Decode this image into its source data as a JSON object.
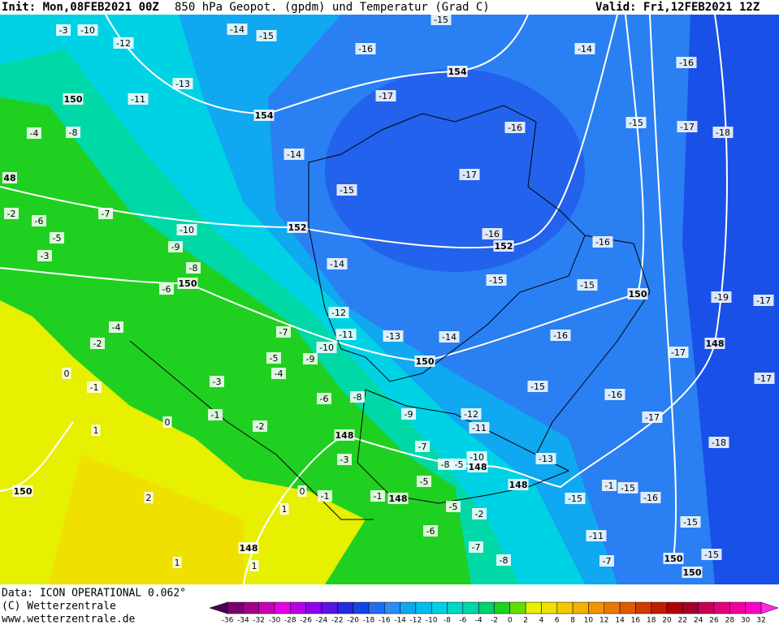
{
  "header": {
    "init": "Init: Mon,08FEB2021 00Z",
    "title": "850 hPa Geopot. (gpdm) und Temperatur (Grad C)",
    "valid": "Valid: Fri,12FEB2021 12Z"
  },
  "temperature_labels": [
    "-10",
    "-3",
    "-12",
    "-14",
    "-15",
    "-15",
    "-16",
    "-14",
    "-16",
    "-13",
    "-11",
    "-17",
    "-16",
    "-15",
    "-17",
    "-18",
    "-8",
    "-4",
    "-14",
    "-17",
    "-15",
    "-2",
    "-6",
    "-7",
    "-10",
    "-5",
    "-9",
    "-3",
    "-16",
    "-16",
    "-14",
    "-8",
    "-6",
    "-15",
    "-15",
    "-19",
    "-12",
    "-4",
    "-7",
    "-11",
    "-13",
    "-14",
    "-16",
    "-2",
    "-10",
    "-17",
    "-5",
    "-9",
    "-4",
    "-1",
    "-3",
    "-15",
    "-17",
    "-16",
    "-6",
    "-8",
    "-1",
    "-9",
    "-12",
    "-17",
    "1",
    "-2",
    "-11",
    "-7",
    "-18",
    "-10",
    "-3",
    "-13",
    "-8",
    "-5",
    "-1",
    "-15",
    "-5",
    "-16",
    "-1",
    "-1",
    "-15",
    "2",
    "-5",
    "1",
    "-6",
    "-11",
    "-15",
    "-7",
    "-2",
    "1",
    "-8",
    "1",
    "-7",
    "-15",
    "0",
    "0",
    "0",
    "-17"
  ],
  "geopotential_labels": [
    "154",
    "154",
    "150",
    "48",
    "152",
    "152",
    "150",
    "150",
    "148",
    "150",
    "148",
    "148",
    "148",
    "150",
    "148",
    "148",
    "150",
    "150"
  ],
  "footer": {
    "data": "Data: ICON OPERATIONAL 0.062°",
    "copyright": "(C) Wetterzentrale",
    "url": "www.wetterzentrale.de"
  },
  "colorbar": {
    "ticks": [
      -36,
      -34,
      -32,
      -30,
      -28,
      -26,
      -24,
      -22,
      -20,
      -18,
      -16,
      -14,
      -12,
      -10,
      -8,
      -6,
      -4,
      -2,
      0,
      2,
      4,
      6,
      8,
      10,
      12,
      14,
      16,
      18,
      20,
      22,
      24,
      26,
      28,
      30,
      32
    ],
    "colors": [
      "#4b0050",
      "#7a006e",
      "#a0008c",
      "#c800b4",
      "#e600e6",
      "#b400e6",
      "#8c00f0",
      "#5a14e6",
      "#2828dc",
      "#1446e6",
      "#1e6ef0",
      "#2a8cf5",
      "#10a8f0",
      "#00c0f0",
      "#00d2e6",
      "#00d8c8",
      "#00d8a8",
      "#00d070",
      "#20d020",
      "#60e000",
      "#e6f000",
      "#f0e000",
      "#f5c800",
      "#f5b000",
      "#f09600",
      "#e87800",
      "#e05a00",
      "#d03c00",
      "#c01e00",
      "#b40000",
      "#a0002a",
      "#c80050",
      "#e6007a",
      "#f500a0",
      "#ff00c8",
      "#ff28e6"
    ]
  }
}
